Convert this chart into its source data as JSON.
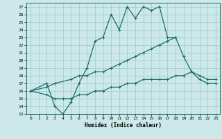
{
  "title": "",
  "xlabel": "Humidex (Indice chaleur)",
  "background_color": "#cce8e8",
  "line_color": "#1a6b6b",
  "grid_color": "#9dc8c8",
  "xlim": [
    -0.5,
    23.5
  ],
  "ylim": [
    13,
    27.5
  ],
  "xticks": [
    0,
    1,
    2,
    3,
    4,
    5,
    6,
    7,
    8,
    9,
    10,
    11,
    12,
    13,
    14,
    15,
    16,
    17,
    18,
    19,
    20,
    21,
    22,
    23
  ],
  "yticks": [
    13,
    14,
    15,
    16,
    17,
    18,
    19,
    20,
    21,
    22,
    23,
    24,
    25,
    26,
    27
  ],
  "line1_x": [
    0,
    2,
    3,
    4,
    5,
    6,
    7,
    8,
    9,
    10,
    11,
    12,
    13,
    14,
    15,
    16,
    17,
    18
  ],
  "line1_y": [
    16,
    17,
    14,
    13,
    14.5,
    17,
    19,
    22.5,
    23,
    26,
    24,
    27,
    25.5,
    27,
    26.5,
    27,
    23,
    23
  ],
  "line2_x": [
    0,
    2,
    3,
    5,
    6,
    7,
    8,
    9,
    10,
    11,
    12,
    13,
    14,
    15,
    16,
    17,
    18,
    19,
    20,
    21,
    22,
    23
  ],
  "line2_y": [
    16,
    16.5,
    17,
    17.5,
    18,
    18,
    18.5,
    18.5,
    19,
    19.5,
    20,
    20.5,
    21,
    21.5,
    22,
    22.5,
    23,
    20.5,
    18.5,
    18,
    17.5,
    17.5
  ],
  "line3_x": [
    0,
    2,
    3,
    4,
    5,
    6,
    7,
    8,
    9,
    10,
    11,
    12,
    13,
    14,
    15,
    16,
    17,
    18,
    19,
    20,
    21,
    22,
    23
  ],
  "line3_y": [
    16,
    15.5,
    15,
    15,
    15,
    15.5,
    15.5,
    16,
    16,
    16.5,
    16.5,
    17,
    17,
    17.5,
    17.5,
    17.5,
    17.5,
    18,
    18,
    18.5,
    17.5,
    17,
    17
  ]
}
